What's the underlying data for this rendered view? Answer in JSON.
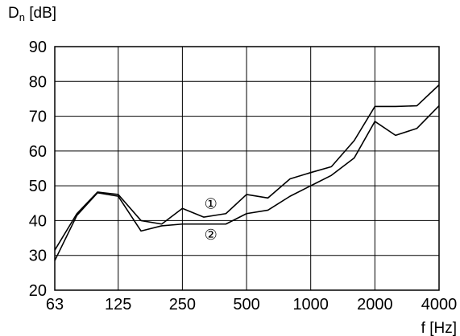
{
  "chart_data": {
    "type": "line",
    "ylabel_main": "D",
    "ylabel_sub": "n",
    "ylabel_unit": " [dB]",
    "xlabel": "f [Hz]",
    "x_scale": "log",
    "xlim": [
      63,
      4000
    ],
    "ylim": [
      20,
      90
    ],
    "grid": true,
    "x_ticks": [
      {
        "value": 63,
        "label": "63"
      },
      {
        "value": 125,
        "label": "125"
      },
      {
        "value": 250,
        "label": "250"
      },
      {
        "value": 500,
        "label": "500"
      },
      {
        "value": 1000,
        "label": "1000"
      },
      {
        "value": 2000,
        "label": "2000"
      },
      {
        "value": 4000,
        "label": "4000"
      }
    ],
    "y_ticks": [
      {
        "value": 20,
        "label": "20"
      },
      {
        "value": 30,
        "label": "30"
      },
      {
        "value": 40,
        "label": "40"
      },
      {
        "value": 50,
        "label": "50"
      },
      {
        "value": 60,
        "label": "60"
      },
      {
        "value": 70,
        "label": "70"
      },
      {
        "value": 80,
        "label": "80"
      },
      {
        "value": 90,
        "label": "90"
      }
    ],
    "x": [
      63,
      80,
      100,
      125,
      160,
      200,
      250,
      315,
      400,
      500,
      630,
      800,
      1000,
      1250,
      1600,
      2000,
      2500,
      3150,
      4000
    ],
    "series": [
      {
        "label": "①",
        "label_at": {
          "x": 340,
          "y": 43.5
        },
        "values": [
          31.5,
          42,
          48.2,
          47.5,
          40,
          39,
          43.5,
          41,
          42,
          47.5,
          46.5,
          52,
          53.8,
          55.5,
          63,
          72.8,
          72.8,
          73,
          79
        ]
      },
      {
        "label": "②",
        "label_at": {
          "x": 340,
          "y": 34.5
        },
        "values": [
          28.5,
          41.5,
          48,
          47,
          37,
          38.5,
          39,
          39,
          39,
          42,
          43,
          47,
          50,
          53,
          58,
          68.5,
          64.5,
          66.5,
          73
        ]
      }
    ]
  }
}
